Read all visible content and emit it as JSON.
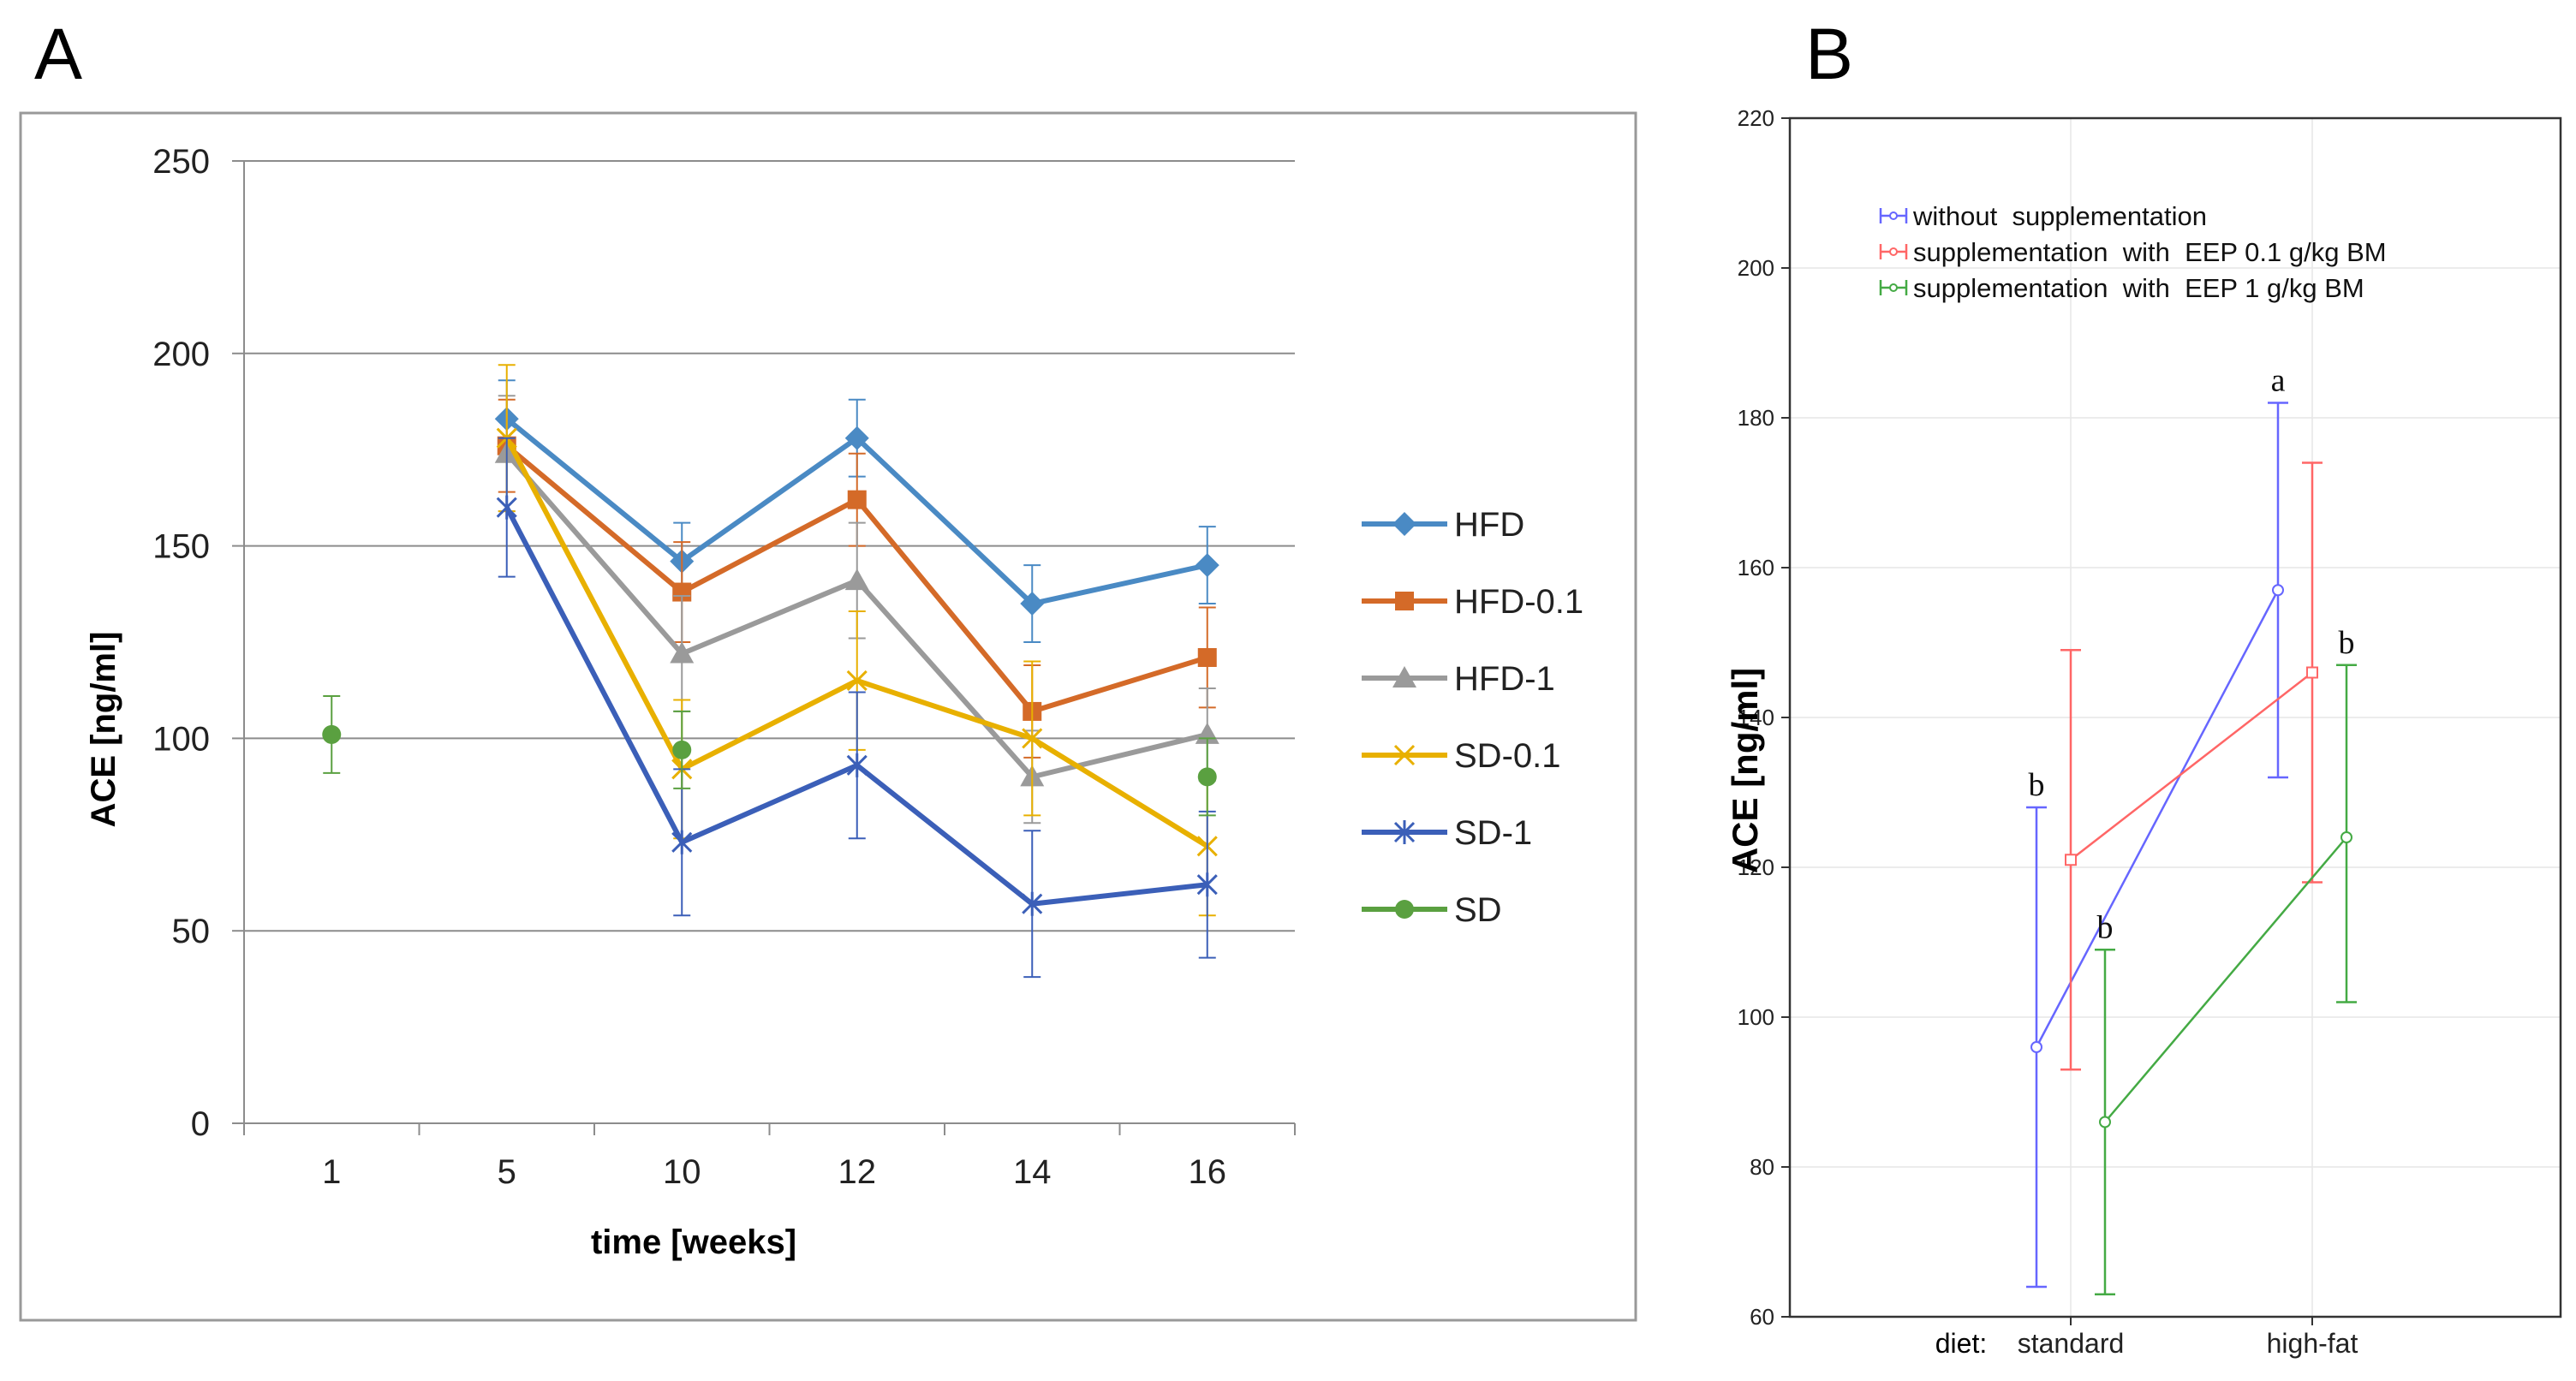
{
  "panels": {
    "a_label": "A",
    "b_label": "B"
  },
  "colors": {
    "HFD": "#4a8ac4",
    "HFD-0.1": "#d46a28",
    "HFD-1": "#9a9a9a",
    "SD-0.1": "#e8b000",
    "SD-1": "#3b5fb8",
    "SD": "#5aa040",
    "without": "#6666ff",
    "eep01": "#ff6666",
    "eep1": "#44aa44"
  },
  "chart_data": [
    {
      "type": "line",
      "title": "",
      "xlabel": "time [weeks]",
      "ylabel": "ACE [ng/ml]",
      "categories": [
        "1",
        "5",
        "10",
        "12",
        "14",
        "16"
      ],
      "ylim": [
        0,
        250
      ],
      "yticks": [
        "0",
        "50",
        "100",
        "150",
        "200",
        "250"
      ],
      "grid": true,
      "legend_position": "right",
      "series": [
        {
          "name": "HFD",
          "marker": "diamond",
          "values": [
            null,
            183,
            146,
            178,
            135,
            145
          ],
          "errors": [
            null,
            10,
            10,
            10,
            10,
            10
          ]
        },
        {
          "name": "HFD-0.1",
          "marker": "square",
          "values": [
            null,
            176,
            138,
            162,
            107,
            121
          ],
          "errors": [
            null,
            12,
            13,
            12,
            12,
            13
          ]
        },
        {
          "name": "HFD-1",
          "marker": "triangle",
          "values": [
            null,
            174,
            122,
            141,
            90,
            101
          ],
          "errors": [
            null,
            15,
            15,
            15,
            12,
            12
          ]
        },
        {
          "name": "SD-0.1",
          "marker": "x",
          "values": [
            null,
            178,
            92,
            115,
            100,
            72
          ],
          "errors": [
            null,
            19,
            18,
            18,
            20,
            18
          ]
        },
        {
          "name": "SD-1",
          "marker": "star",
          "values": [
            null,
            160,
            73,
            93,
            57,
            62
          ],
          "errors": [
            null,
            18,
            19,
            19,
            19,
            19
          ]
        },
        {
          "name": "SD",
          "marker": "circle",
          "values": [
            101,
            null,
            97,
            null,
            null,
            90
          ],
          "errors": [
            10,
            null,
            10,
            null,
            null,
            10
          ]
        }
      ]
    },
    {
      "type": "line",
      "title": "",
      "xlabel": "",
      "xprefix": "diet:",
      "ylabel": "ACE [ng/ml]",
      "categories": [
        "standard",
        "high-fat"
      ],
      "ylim": [
        60,
        220
      ],
      "yticks": [
        "60",
        "80",
        "100",
        "120",
        "140",
        "160",
        "180",
        "200",
        "220"
      ],
      "legend_position": "top-left",
      "series": [
        {
          "name": "without  supplementation",
          "values": [
            96,
            157
          ],
          "lower": [
            64,
            132
          ],
          "upper": [
            128,
            182
          ],
          "letters": [
            "b",
            "a"
          ]
        },
        {
          "name": "supplementation  with  EEP 0.1 g/kg BM",
          "values": [
            121,
            146
          ],
          "lower": [
            93,
            118
          ],
          "upper": [
            149,
            174
          ],
          "letters": [
            "",
            ""
          ]
        },
        {
          "name": "supplementation  with  EEP 1 g/kg BM",
          "values": [
            86,
            124
          ],
          "lower": [
            63,
            102
          ],
          "upper": [
            109,
            147
          ],
          "letters": [
            "b",
            "b"
          ]
        }
      ]
    }
  ]
}
